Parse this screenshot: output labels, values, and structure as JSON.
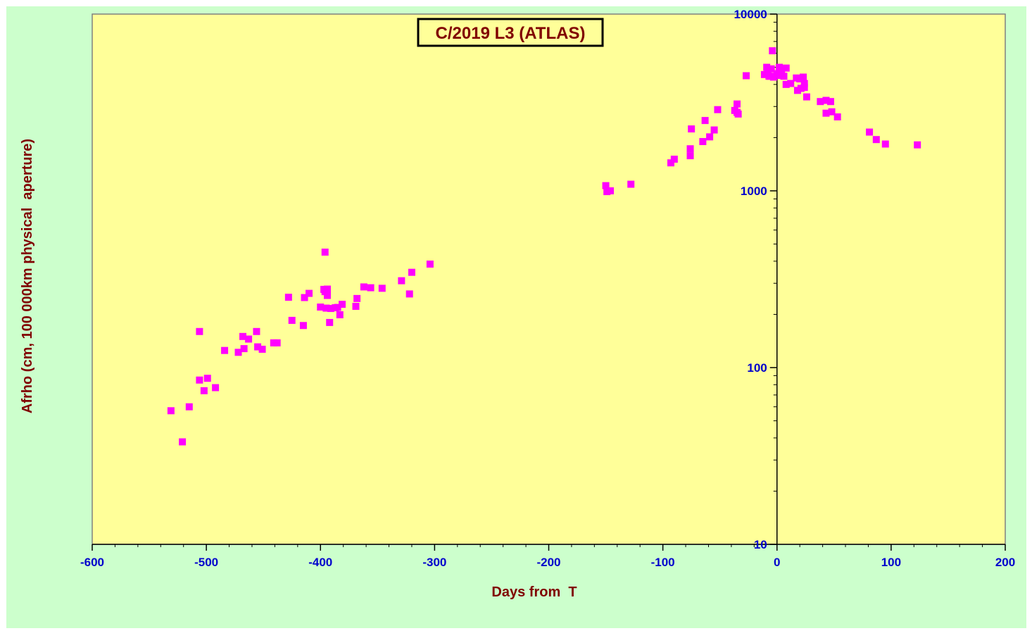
{
  "chart_data": {
    "type": "scatter",
    "title": "C/2019 L3 (ATLAS)",
    "xlabel": "Days from  T",
    "ylabel": "Afrho (cm, 100 000km physical  aperture)",
    "xlim": [
      -600,
      200
    ],
    "ylim": [
      10,
      10000
    ],
    "yscale": "log",
    "x_ticks": [
      "-600",
      "-500",
      "-400",
      "-300",
      "-200",
      "-100",
      "0",
      "100",
      "200"
    ],
    "y_ticks": [
      "10",
      "100",
      "1000",
      "10000"
    ],
    "grid": false,
    "legend": "none",
    "colors": {
      "background": "#ccffcc",
      "plot_area": "#ffff99",
      "points": "#ff00ff",
      "axis_text": "#0000cc",
      "label_text": "#800000",
      "title_box_bg": "#ffff99"
    },
    "series": [
      {
        "points": [
          [
            -531,
            57
          ],
          [
            -521,
            38
          ],
          [
            -515,
            60
          ],
          [
            -506,
            160
          ],
          [
            -506,
            85
          ],
          [
            -502,
            74
          ],
          [
            -499,
            87
          ],
          [
            -492,
            77
          ],
          [
            -484,
            125
          ],
          [
            -472,
            122
          ],
          [
            -468,
            150
          ],
          [
            -467,
            128
          ],
          [
            -463,
            145
          ],
          [
            -456,
            160
          ],
          [
            -455,
            131
          ],
          [
            -451,
            127
          ],
          [
            -441,
            138
          ],
          [
            -438,
            138
          ],
          [
            -428,
            250
          ],
          [
            -425,
            185
          ],
          [
            -415,
            173
          ],
          [
            -414,
            249
          ],
          [
            -410,
            263
          ],
          [
            -400,
            220
          ],
          [
            -397,
            277
          ],
          [
            -396,
            269
          ],
          [
            -396,
            450
          ],
          [
            -395,
            217
          ],
          [
            -394,
            278
          ],
          [
            -394,
            256
          ],
          [
            -392,
            180
          ],
          [
            -391,
            216
          ],
          [
            -387,
            218
          ],
          [
            -385,
            219
          ],
          [
            -383,
            199
          ],
          [
            -381,
            228
          ],
          [
            -369,
            222
          ],
          [
            -368,
            246
          ],
          [
            -362,
            286
          ],
          [
            -356,
            283
          ],
          [
            -346,
            281
          ],
          [
            -329,
            310
          ],
          [
            -322,
            261
          ],
          [
            -320,
            346
          ],
          [
            -304,
            385
          ],
          [
            -150,
            1070
          ],
          [
            -149,
            990
          ],
          [
            -146,
            1000
          ],
          [
            -128,
            1090
          ],
          [
            -93,
            1440
          ],
          [
            -90,
            1510
          ],
          [
            -76,
            1580
          ],
          [
            -76,
            1730
          ],
          [
            -75,
            2240
          ],
          [
            -65,
            1900
          ],
          [
            -63,
            2500
          ],
          [
            -59,
            2020
          ],
          [
            -55,
            2210
          ],
          [
            -52,
            2880
          ],
          [
            -37,
            2850
          ],
          [
            -35,
            3100
          ],
          [
            -35,
            2780
          ],
          [
            -34,
            2720
          ],
          [
            -27,
            4480
          ],
          [
            -11,
            4550
          ],
          [
            -9,
            5000
          ],
          [
            -8,
            4700
          ],
          [
            -7,
            4450
          ],
          [
            -6,
            4450
          ],
          [
            -5,
            4900
          ],
          [
            -4,
            6200
          ],
          [
            -3,
            4400
          ],
          [
            0,
            4600
          ],
          [
            2,
            5000
          ],
          [
            3,
            4500
          ],
          [
            4,
            4700
          ],
          [
            6,
            4450
          ],
          [
            8,
            4950
          ],
          [
            8,
            4000
          ],
          [
            12,
            4050
          ],
          [
            17,
            4350
          ],
          [
            18,
            3700
          ],
          [
            20,
            4300
          ],
          [
            21,
            3800
          ],
          [
            23,
            4400
          ],
          [
            24,
            3850
          ],
          [
            24,
            4050
          ],
          [
            26,
            3400
          ],
          [
            38,
            3200
          ],
          [
            43,
            3250
          ],
          [
            43,
            2750
          ],
          [
            47,
            3200
          ],
          [
            48,
            2800
          ],
          [
            53,
            2620
          ],
          [
            81,
            2150
          ],
          [
            87,
            1950
          ],
          [
            95,
            1840
          ],
          [
            123,
            1820
          ]
        ]
      }
    ]
  }
}
